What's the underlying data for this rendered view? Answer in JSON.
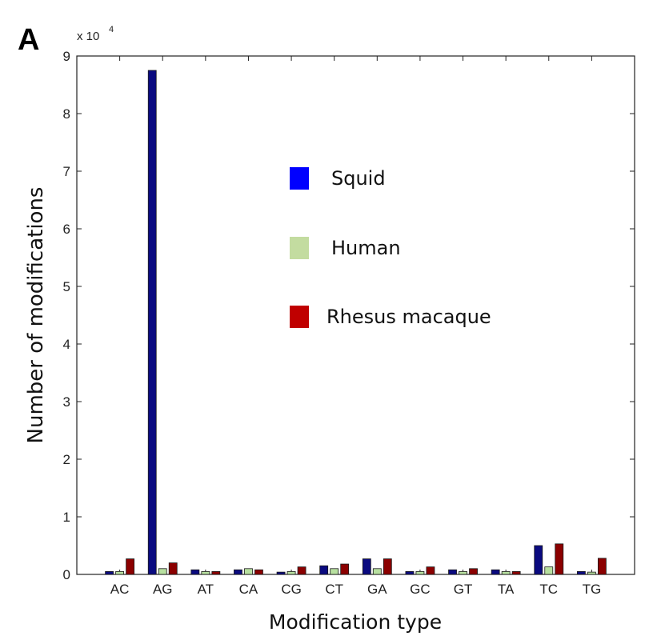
{
  "panel_label": "A",
  "chart_data": {
    "type": "bar",
    "title": "",
    "xlabel": "Modification type",
    "ylabel": "Number of modifications",
    "y_multiplier_label": "x 10",
    "y_multiplier_exponent": "4",
    "ylim": [
      0,
      9
    ],
    "yticks": [
      "0",
      "1",
      "2",
      "3",
      "4",
      "5",
      "6",
      "7",
      "8",
      "9"
    ],
    "categories": [
      "AC",
      "AG",
      "AT",
      "CA",
      "CG",
      "CT",
      "GA",
      "GC",
      "GT",
      "TA",
      "TC",
      "TG"
    ],
    "series": [
      {
        "name": "Squid",
        "color": "#0a0a80",
        "legend_color": "#0000ff",
        "values": [
          0.05,
          8.75,
          0.08,
          0.08,
          0.04,
          0.15,
          0.27,
          0.05,
          0.08,
          0.08,
          0.5,
          0.05
        ]
      },
      {
        "name": "Human",
        "color": "#b8e0a0",
        "legend_color": "#c3dca0",
        "values": [
          0.05,
          0.1,
          0.05,
          0.1,
          0.05,
          0.1,
          0.1,
          0.05,
          0.05,
          0.05,
          0.13,
          0.04
        ]
      },
      {
        "name": "Rhesus macaque",
        "color": "#8b0000",
        "legend_color": "#c00000",
        "values": [
          0.27,
          0.2,
          0.05,
          0.08,
          0.13,
          0.18,
          0.27,
          0.13,
          0.1,
          0.05,
          0.53,
          0.28
        ]
      }
    ],
    "legend_placement": "upper-center-inside",
    "grid": false
  }
}
